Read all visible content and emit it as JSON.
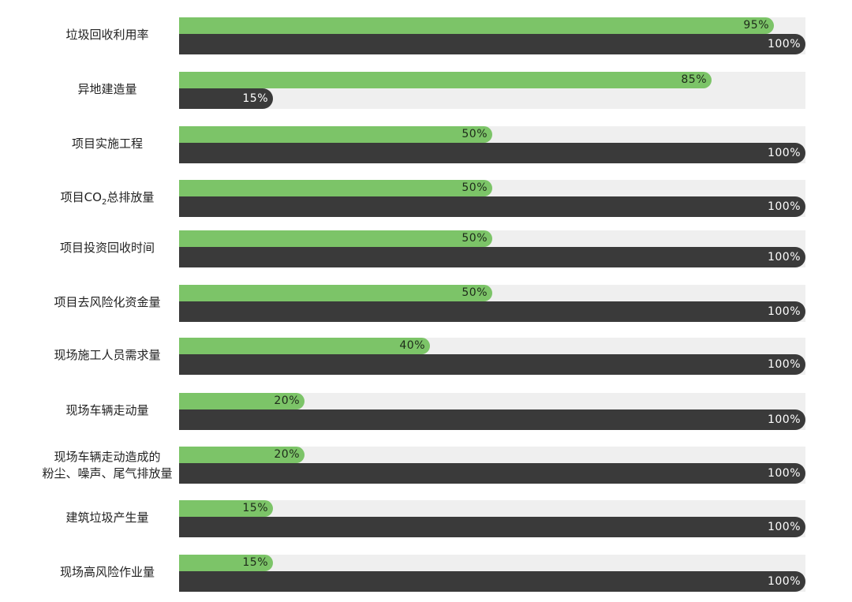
{
  "chart_data": {
    "type": "bar",
    "orientation": "horizontal",
    "unit": "%",
    "xlim": [
      0,
      100
    ],
    "colors": {
      "green": "#7cc468",
      "dark": "#3a3a3a",
      "track": "#efefef"
    },
    "categories": [
      {
        "label": "垃圾回收利用率"
      },
      {
        "label": "异地建造量"
      },
      {
        "label": "项目实施工程"
      },
      {
        "label": "项目CO",
        "sub": "2",
        "suffix": "总排放量"
      },
      {
        "label": "项目投资回收时间"
      },
      {
        "label": "项目去风险化资金量"
      },
      {
        "label": "现场施工人员需求量"
      },
      {
        "label": "现场车辆走动量"
      },
      {
        "label": "现场车辆走动造成的",
        "label2": "粉尘、噪声、尾气排放量"
      },
      {
        "label": "建筑垃圾产生量"
      },
      {
        "label": "现场高风险作业量"
      }
    ],
    "series": [
      {
        "color": "green",
        "values": [
          95,
          85,
          50,
          50,
          50,
          50,
          40,
          20,
          20,
          15,
          15
        ],
        "labels": [
          "95%",
          "85%",
          "50%",
          "50%",
          "50%",
          "50%",
          "40%",
          "20%",
          "20%",
          "15%",
          "15%"
        ]
      },
      {
        "color": "dark",
        "values": [
          100,
          15,
          100,
          100,
          100,
          100,
          100,
          100,
          100,
          100,
          100
        ],
        "labels": [
          "100%",
          "15%",
          "100%",
          "100%",
          "100%",
          "100%",
          "100%",
          "100%",
          "100%",
          "100%",
          "100%"
        ]
      }
    ]
  }
}
